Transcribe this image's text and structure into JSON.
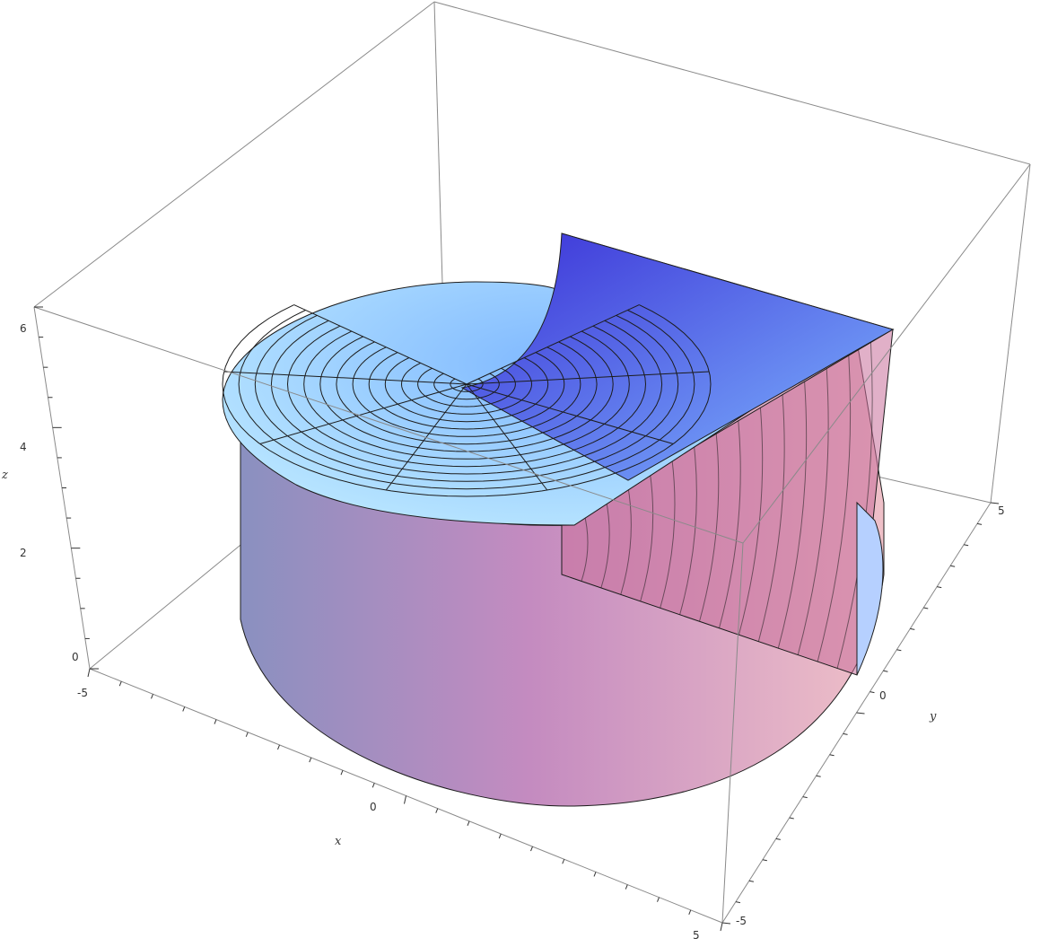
{
  "chart_data": {
    "type": "surface3d",
    "description_of_surface": "helicoid ramp z = (phi/(2pi))*6 over polar disk r in [0,5], phi in [0, 3pi/2], with cylindrical side wall",
    "axes": {
      "x": {
        "label": "x",
        "ticks": [
          "-5",
          "0",
          "5"
        ],
        "range": [
          -5,
          5
        ]
      },
      "y": {
        "label": "y",
        "ticks": [
          "-5",
          "0",
          "5"
        ],
        "range": [
          -5,
          5
        ]
      },
      "z": {
        "label": "z",
        "ticks": [
          "0",
          "2",
          "4",
          "6"
        ],
        "range": [
          0,
          6
        ]
      }
    },
    "surface": {
      "radius": 5,
      "height": 6,
      "angular_extent_deg": 270,
      "mesh_radial_rings": 15,
      "mesh_angular_spokes": 8
    },
    "colors": {
      "top_light": "#b9e6ff",
      "top_mid": "#7fb8ff",
      "top_dark": "#3a2fd6",
      "wall_left": "#8a90c0",
      "wall_mid": "#c48bc0",
      "wall_right": "#efc0c8",
      "mesh": "#1c1c1c",
      "box": "#8a8a8a"
    }
  }
}
